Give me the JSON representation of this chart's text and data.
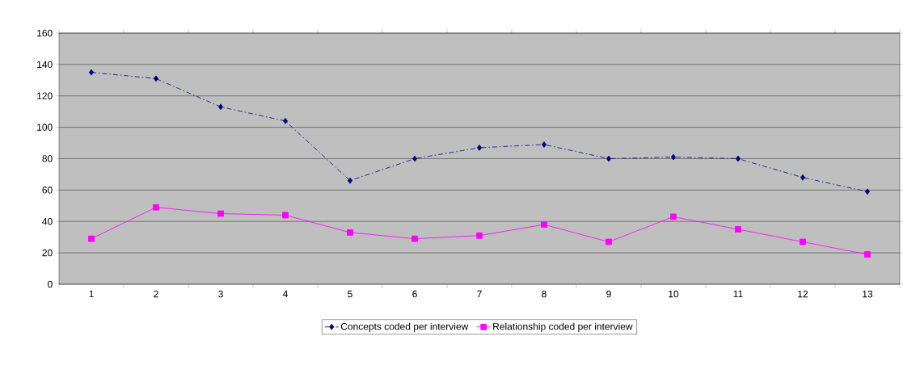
{
  "chart_data": {
    "type": "line",
    "categories": [
      "1",
      "2",
      "3",
      "4",
      "5",
      "6",
      "7",
      "8",
      "9",
      "10",
      "11",
      "12",
      "13"
    ],
    "series": [
      {
        "name": "Concepts coded per interview",
        "color": "#000080",
        "marker": "diamond",
        "line_style": "dashed",
        "values": [
          135,
          131,
          113,
          104,
          66,
          80,
          87,
          89,
          80,
          81,
          80,
          68,
          59
        ]
      },
      {
        "name": "Relationship coded per interview",
        "color": "#ff00ff",
        "marker": "square",
        "line_style": "solid",
        "values": [
          29,
          49,
          45,
          44,
          33,
          29,
          31,
          38,
          27,
          43,
          35,
          27,
          19
        ]
      }
    ],
    "ylim": [
      0,
      160
    ],
    "yticks": [
      0,
      20,
      40,
      60,
      80,
      100,
      120,
      140,
      160
    ],
    "grid": "y",
    "legend": "bottom"
  }
}
